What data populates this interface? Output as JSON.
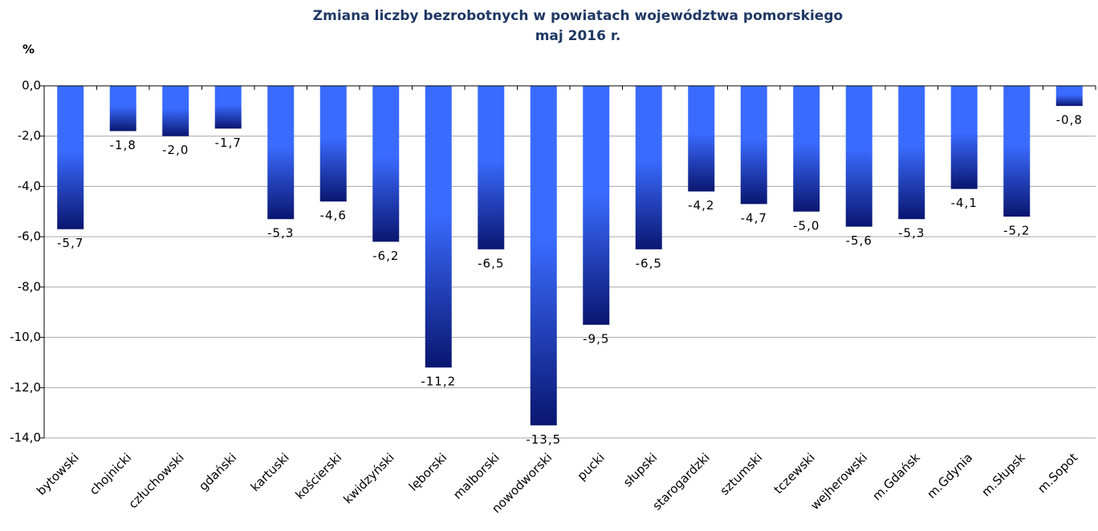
{
  "chart_data": {
    "type": "bar",
    "title": "Zmiana liczby bezrobotnych  w  powiatach województwa pomorskiego",
    "subtitle": "maj 2016 r.",
    "y_label": "%",
    "categories": [
      "bytowski",
      "chojnicki",
      "człuchowski",
      "gdański",
      "kartuski",
      "kościerski",
      "kwidzyński",
      "lęborski",
      "malborski",
      "nowodworski",
      "pucki",
      "słupski",
      "starogardzki",
      "sztumski",
      "tczewski",
      "wejherowski",
      "m.Gdańsk",
      "m.Gdynia",
      "m.Słupsk",
      "m.Sopot"
    ],
    "values": [
      -5.7,
      -1.8,
      -2.0,
      -1.7,
      -5.3,
      -4.6,
      -6.2,
      -11.2,
      -6.5,
      -13.5,
      -9.5,
      -6.5,
      -4.2,
      -4.7,
      -5.0,
      -5.6,
      -5.3,
      -4.1,
      -5.2,
      -0.8
    ],
    "value_labels": [
      "-5,7",
      "-1,8",
      "-2,0",
      "-1,7",
      "-5,3",
      "-4,6",
      "-6,2",
      "-11,2",
      "-6,5",
      "-13,5",
      "-9,5",
      "-6,5",
      "-4,2",
      "-4,7",
      "-5,0",
      "-5,6",
      "-5,3",
      "-4,1",
      "-5,2",
      "-0,8"
    ],
    "color": "#3a6bff",
    "color_dark": "#0a1670",
    "ylim": [
      -14,
      0
    ],
    "yticks": [
      {
        "value": -14,
        "label": "-14,0"
      },
      {
        "value": -12,
        "label": "-12,0"
      },
      {
        "value": -10,
        "label": "-10,0"
      },
      {
        "value": -8,
        "label": "-8,0"
      },
      {
        "value": -6,
        "label": "-6,0"
      },
      {
        "value": -4,
        "label": "-4,0"
      },
      {
        "value": -2,
        "label": "-2,0"
      },
      {
        "value": 0,
        "label": "0,0"
      }
    ],
    "grid": true
  }
}
